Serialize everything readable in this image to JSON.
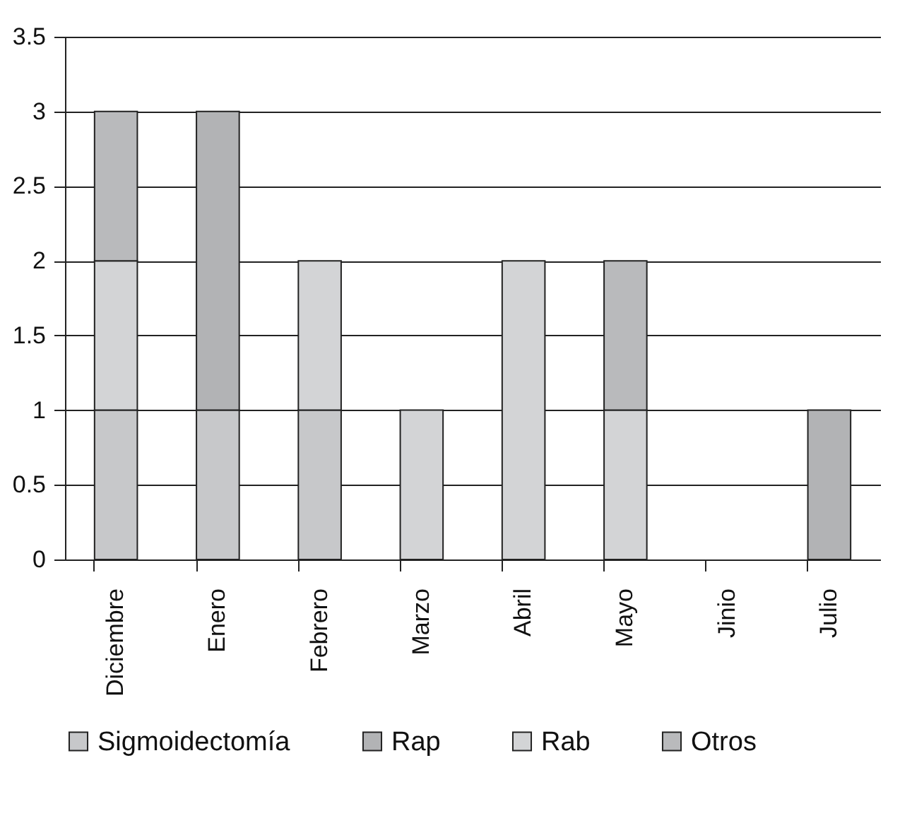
{
  "chart_data": {
    "type": "bar",
    "stacked": true,
    "categories": [
      "Diciembre",
      "Enero",
      "Febrero",
      "Marzo",
      "Abril",
      "Mayo",
      "Jinio",
      "Julio"
    ],
    "series": [
      {
        "name": "Sigmoidectomía",
        "color": "#c7c8ca",
        "values": [
          1,
          1,
          1,
          null,
          null,
          null,
          null,
          null
        ]
      },
      {
        "name": "Rap",
        "color": "#b2b3b5",
        "values": [
          null,
          2,
          null,
          null,
          null,
          null,
          null,
          1
        ]
      },
      {
        "name": "Rab",
        "color": "#d3d4d6",
        "values": [
          1,
          null,
          1,
          1,
          2,
          1,
          null,
          null
        ]
      },
      {
        "name": "Otros",
        "color": "#b9babc",
        "values": [
          1,
          null,
          null,
          null,
          null,
          1,
          null,
          null
        ]
      }
    ],
    "ylim": [
      0,
      3.5
    ],
    "yticks": [
      0,
      0.5,
      1,
      1.5,
      2,
      2.5,
      3,
      3.5
    ],
    "grid": "y",
    "legend": "bottom"
  }
}
